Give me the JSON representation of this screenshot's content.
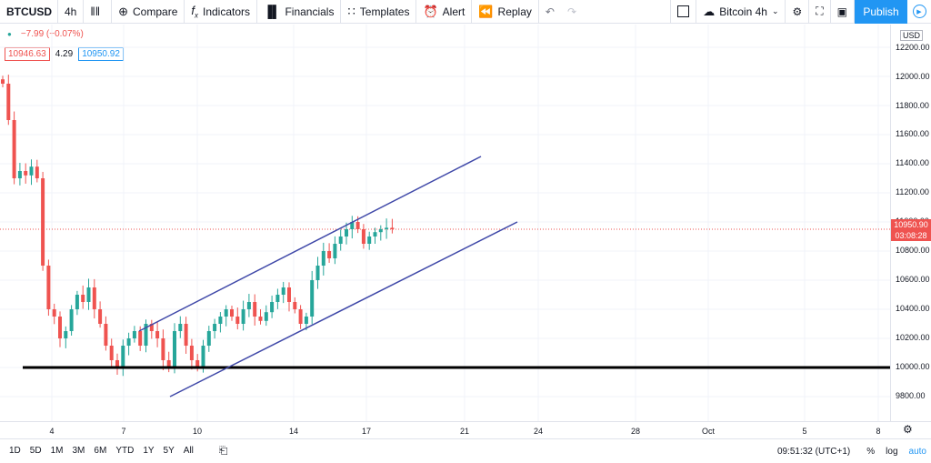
{
  "toolbar": {
    "symbol": "BTCUSD",
    "interval": "4h",
    "compare": "Compare",
    "indicators": "Indicators",
    "financials": "Financials",
    "templates": "Templates",
    "alert": "Alert",
    "replay": "Replay",
    "layout_name": "Bitcoin 4h",
    "publish": "Publish"
  },
  "legend": {
    "change": "−7.99 (−0.07%)",
    "bid": "10946.63",
    "spread": "4.29",
    "ask": "10950.92"
  },
  "price_axis": {
    "currency": "USD",
    "labels": [
      "12200.00",
      "12000.00",
      "11800.00",
      "11600.00",
      "11400.00",
      "11200.00",
      "11000.00",
      "10800.00",
      "10600.00",
      "10400.00",
      "10200.00",
      "10000.00",
      "9800.00"
    ],
    "last_price": "10950.90",
    "countdown": "03:08:28"
  },
  "time_axis": {
    "labels": [
      "4",
      "7",
      "10",
      "14",
      "17",
      "21",
      "24",
      "28",
      "Oct",
      "5",
      "8"
    ]
  },
  "bottom": {
    "ranges": [
      "1D",
      "5D",
      "1M",
      "3M",
      "6M",
      "YTD",
      "1Y",
      "5Y",
      "All"
    ],
    "clock": "09:51:32 (UTC+1)",
    "percent": "%",
    "log": "log",
    "auto": "auto"
  },
  "colors": {
    "up": "#26a69a",
    "down": "#ef5350",
    "channel": "#3f48a8",
    "support": "#000000",
    "accent": "#2196f3"
  },
  "chart_data": {
    "type": "candlestick",
    "title": "BTCUSD 4h",
    "ylim": [
      9650,
      12350
    ],
    "support_level": 10000,
    "channel_upper": [
      [
        "Sep 7",
        10250
      ],
      [
        "Sep 21",
        11450
      ]
    ],
    "channel_lower": [
      [
        "Sep 8",
        9800
      ],
      [
        "Sep 22",
        11000
      ]
    ],
    "x_ticks": [
      "4",
      "7",
      "10",
      "14",
      "17",
      "21",
      "24",
      "28",
      "Oct",
      "5",
      "8"
    ],
    "close_series": [
      11950,
      11700,
      11300,
      11350,
      11320,
      11380,
      11300,
      10700,
      10400,
      10350,
      10200,
      10250,
      10400,
      10500,
      10450,
      10550,
      10400,
      10300,
      10150,
      10050,
      10000,
      10150,
      10200,
      10250,
      10150,
      10300,
      10250,
      10200,
      10050,
      10000,
      10250,
      10300,
      10150,
      10050,
      10000,
      10150,
      10250,
      10300,
      10350,
      10400,
      10350,
      10300,
      10400,
      10450,
      10350,
      10320,
      10380,
      10450,
      10500,
      10550,
      10450,
      10400,
      10300,
      10350,
      10600,
      10700,
      10800,
      10750,
      10850,
      10900,
      10950,
      11000,
      10950,
      10850,
      10900,
      10930,
      10950,
      10960,
      10950
    ]
  }
}
